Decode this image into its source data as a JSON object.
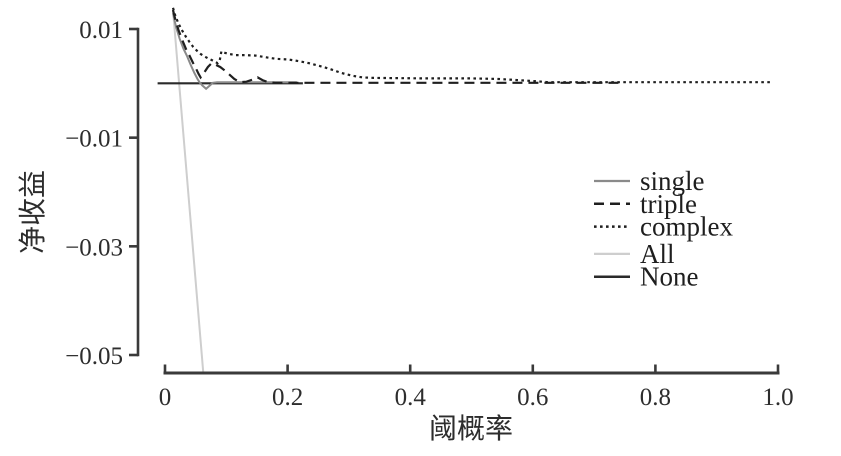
{
  "figure": {
    "background": "#ffffff",
    "axis_color": "#3a3a3a",
    "tick_label_color": "#2d2d2d"
  },
  "chart_data": {
    "type": "line",
    "title": "",
    "xlabel": "阈概率",
    "ylabel": "净收益",
    "xlim": [
      0,
      1.0
    ],
    "ylim": [
      -0.05,
      0.01
    ],
    "grid": false,
    "legend_position": "right-middle",
    "xticks": [
      0,
      0.2,
      0.4,
      0.6,
      0.8,
      1.0
    ],
    "xtick_labels": [
      "0",
      "0.2",
      "0.4",
      "0.6",
      "0.8",
      "1.0"
    ],
    "yticks": [
      0.01,
      -0.01,
      -0.03,
      -0.05
    ],
    "ytick_labels": [
      "0.01",
      "−0.01",
      "−0.03",
      "−0.05"
    ],
    "series": [
      {
        "name": "single",
        "linestyle": "solid",
        "color": "#8a8a8a",
        "width": 2,
        "points": [
          [
            0.013,
            0.0129
          ],
          [
            0.018,
            0.0104
          ],
          [
            0.024,
            0.0082
          ],
          [
            0.03,
            0.0064
          ],
          [
            0.036,
            0.005
          ],
          [
            0.042,
            0.0034
          ],
          [
            0.048,
            0.0019
          ],
          [
            0.053,
            0.0008
          ],
          [
            0.057,
            0.0001
          ],
          [
            0.061,
            -0.0004
          ],
          [
            0.067,
            -0.001
          ],
          [
            0.074,
            -0.0003
          ],
          [
            0.078,
            0.0001
          ],
          [
            0.085,
            0.0002
          ],
          [
            0.215,
            0.0002
          ]
        ]
      },
      {
        "name": "triple",
        "linestyle": "dashed",
        "color": "#1f1f1f",
        "width": 2.2,
        "points": [
          [
            0.013,
            0.0135
          ],
          [
            0.017,
            0.0117
          ],
          [
            0.022,
            0.0098
          ],
          [
            0.028,
            0.008
          ],
          [
            0.034,
            0.0064
          ],
          [
            0.04,
            0.0051
          ],
          [
            0.046,
            0.0037
          ],
          [
            0.051,
            0.0026
          ],
          [
            0.055,
            0.0017
          ],
          [
            0.058,
            0.0011
          ],
          [
            0.064,
            0.002
          ],
          [
            0.07,
            0.003
          ],
          [
            0.076,
            0.0037
          ],
          [
            0.083,
            0.0034
          ],
          [
            0.09,
            0.003
          ],
          [
            0.097,
            0.0024
          ],
          [
            0.105,
            0.0016
          ],
          [
            0.113,
            0.0008
          ],
          [
            0.122,
            0.0002
          ],
          [
            0.133,
            0.0003
          ],
          [
            0.143,
            0.0007
          ],
          [
            0.151,
            0.0011
          ],
          [
            0.159,
            0.0006
          ],
          [
            0.168,
            0.0002
          ],
          [
            0.18,
            0.0001
          ],
          [
            0.747,
            0.0001
          ]
        ]
      },
      {
        "name": "complex",
        "linestyle": "dotted",
        "color": "#1f1f1f",
        "width": 2.2,
        "points": [
          [
            0.013,
            0.0139
          ],
          [
            0.017,
            0.0124
          ],
          [
            0.022,
            0.011
          ],
          [
            0.028,
            0.0097
          ],
          [
            0.034,
            0.0086
          ],
          [
            0.04,
            0.0076
          ],
          [
            0.046,
            0.0067
          ],
          [
            0.052,
            0.006
          ],
          [
            0.058,
            0.0054
          ],
          [
            0.064,
            0.005
          ],
          [
            0.07,
            0.0046
          ],
          [
            0.076,
            0.0043
          ],
          [
            0.081,
            0.004
          ],
          [
            0.086,
            0.0037
          ],
          [
            0.089,
            0.0041
          ],
          [
            0.092,
            0.0059
          ],
          [
            0.098,
            0.0056
          ],
          [
            0.105,
            0.0054
          ],
          [
            0.115,
            0.0052
          ],
          [
            0.13,
            0.0052
          ],
          [
            0.148,
            0.0051
          ],
          [
            0.165,
            0.0048
          ],
          [
            0.182,
            0.0045
          ],
          [
            0.2,
            0.0044
          ],
          [
            0.218,
            0.0041
          ],
          [
            0.235,
            0.0037
          ],
          [
            0.252,
            0.0032
          ],
          [
            0.27,
            0.0026
          ],
          [
            0.288,
            0.0019
          ],
          [
            0.305,
            0.0014
          ],
          [
            0.322,
            0.0011
          ],
          [
            0.34,
            0.001
          ],
          [
            0.42,
            0.0009
          ],
          [
            0.5,
            0.0009
          ],
          [
            0.545,
            0.0008
          ],
          [
            0.575,
            0.0006
          ],
          [
            0.605,
            0.0004
          ],
          [
            0.625,
            0.0002
          ],
          [
            0.66,
            0.0002
          ],
          [
            0.99,
            0.0002
          ]
        ]
      },
      {
        "name": "All",
        "linestyle": "solid",
        "color": "#cecece",
        "width": 2,
        "points": [
          [
            0.013,
            0.0135
          ],
          [
            0.0625,
            -0.0533
          ]
        ]
      },
      {
        "name": "None",
        "linestyle": "solid",
        "color": "#2a2a2a",
        "width": 2.2,
        "points": [
          [
            -0.012,
            0.0
          ],
          [
            0.225,
            0.0
          ]
        ]
      }
    ],
    "legend": [
      "single",
      "triple",
      "complex",
      "All",
      "None"
    ]
  }
}
